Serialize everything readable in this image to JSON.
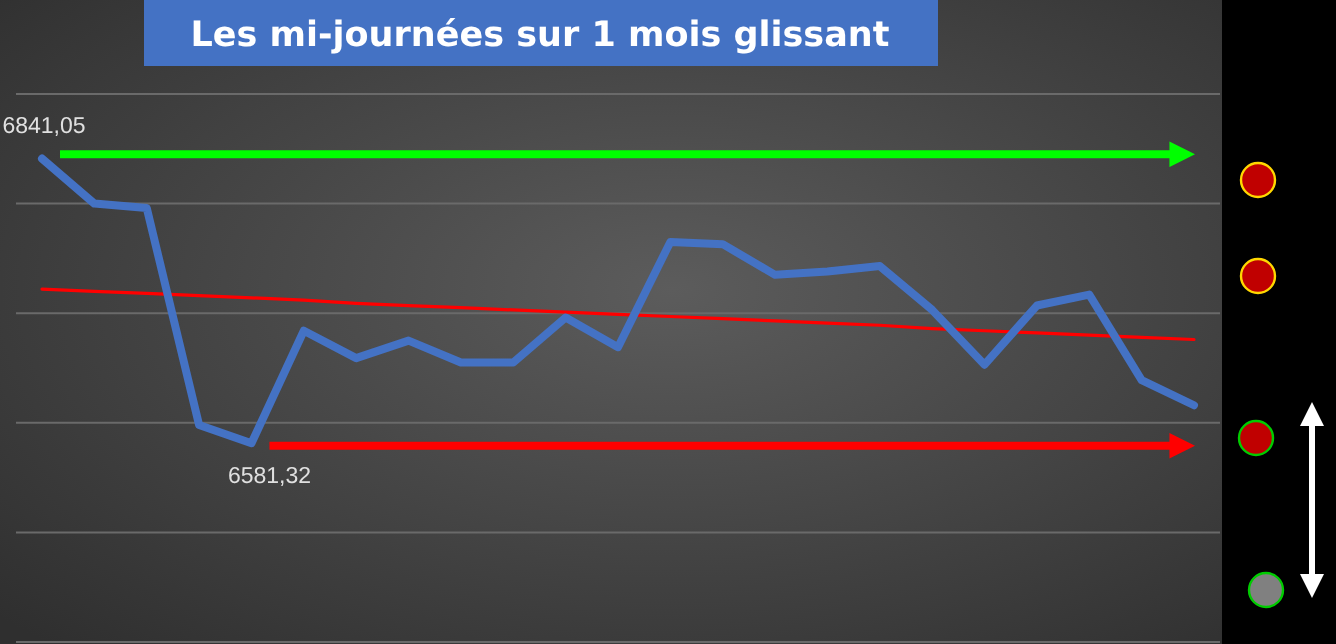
{
  "chart_data": {
    "type": "line",
    "title": "Les mi-journées sur 1 mois glissant",
    "categories": [
      null,
      null,
      null,
      null,
      null,
      null,
      null,
      null,
      null,
      null,
      null,
      null,
      null,
      null,
      null,
      null,
      null,
      null,
      null,
      null,
      null,
      null,
      null
    ],
    "series": [
      {
        "color": "#4472c4",
        "values": [
          6841.05,
          6800,
          6796,
          6598,
          6581.32,
          6684,
          6659,
          6675,
          6655,
          6655,
          6696,
          6669,
          6765,
          6763,
          6735,
          6738,
          6743,
          6703,
          6653,
          6707,
          6717,
          6639,
          6616
        ],
        "value_labels": [
          "6841,05",
          null,
          null,
          null,
          "6581,32",
          null,
          null,
          null,
          null,
          null,
          null,
          null,
          null,
          null,
          null,
          null,
          null,
          null,
          null,
          null,
          null,
          null,
          null
        ]
      },
      {
        "type": "line",
        "color": "#ff0000",
        "values": [
          6722,
          6720,
          6718,
          6716,
          6714,
          6712,
          6709,
          6707,
          6705,
          6703,
          6701,
          6699,
          6697,
          6695,
          6693,
          6691,
          6689,
          6686,
          6684,
          6682,
          6680,
          6678,
          6676
        ]
      }
    ],
    "ylim": [
      6400,
      6900
    ],
    "yticks": [
      {
        "value": 6400,
        "label": null
      },
      {
        "value": 6500,
        "label": null
      },
      {
        "value": 6600,
        "label": null
      },
      {
        "value": 6700,
        "label": null
      },
      {
        "value": 6800,
        "label": null
      },
      {
        "value": 6900,
        "label": null
      }
    ],
    "grid": "y",
    "ref_lines": [
      {
        "axis": "y",
        "value": 6845,
        "color": "#00ff00"
      },
      {
        "axis": "y",
        "value": 6579,
        "color": "#ff0000"
      }
    ]
  }
}
